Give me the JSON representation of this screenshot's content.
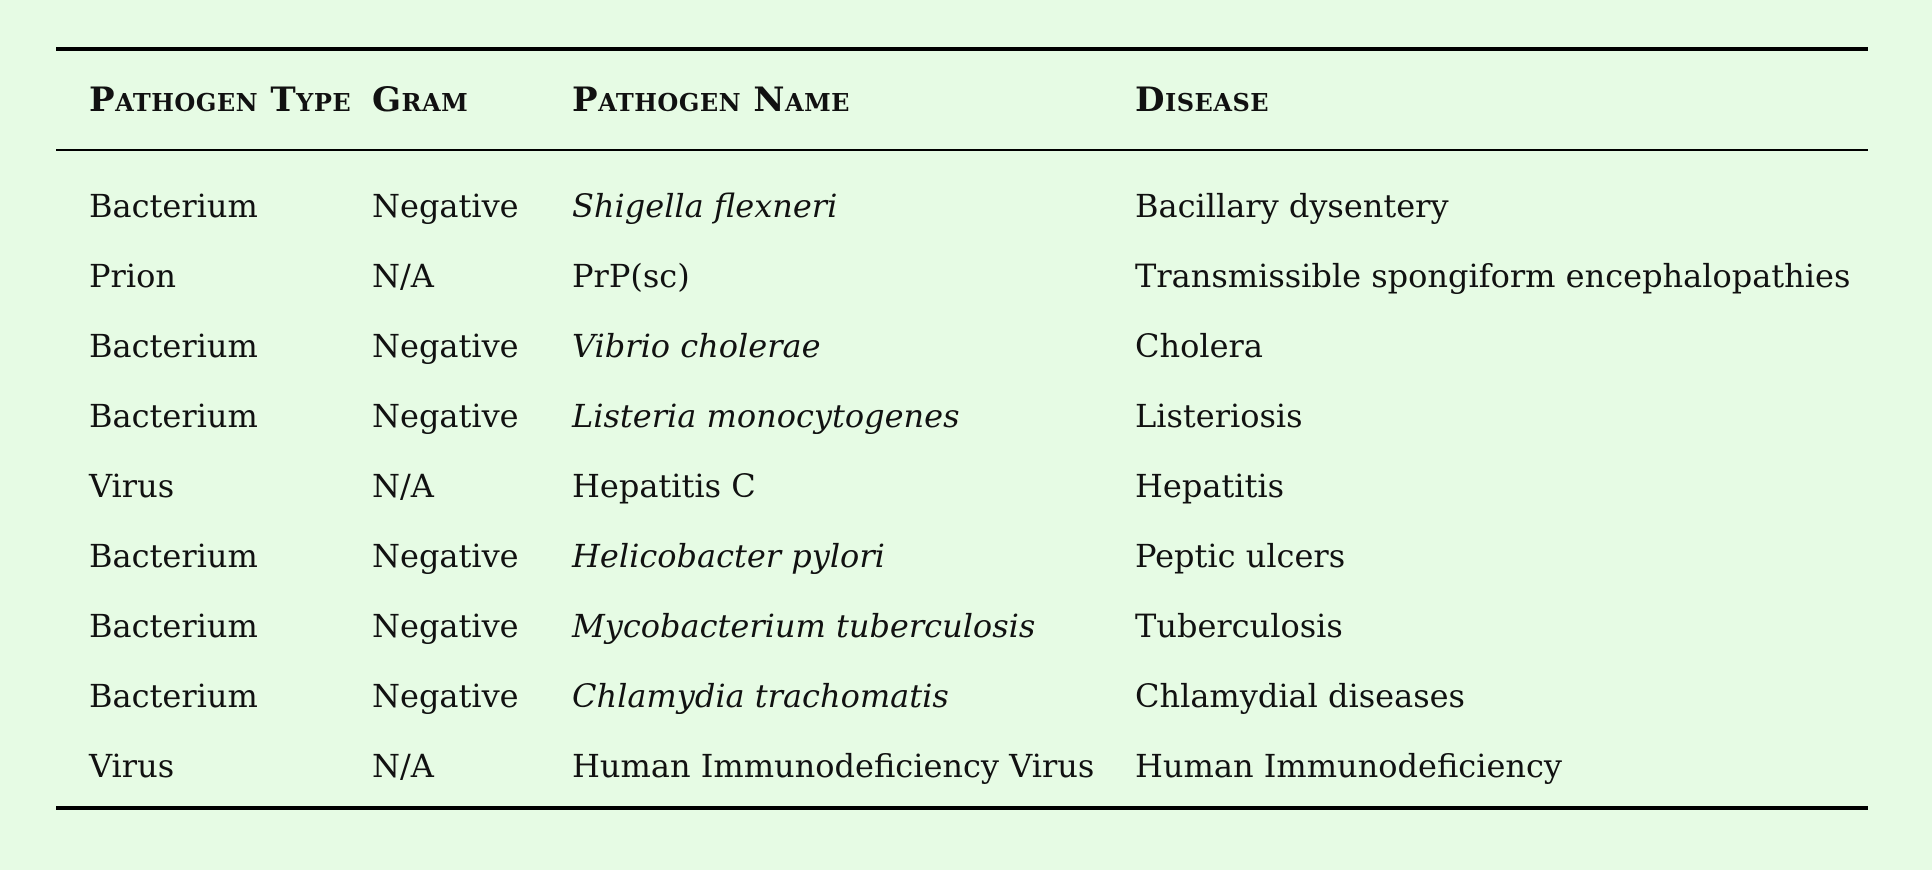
{
  "table": {
    "headers": [
      "Pathogen Type",
      "Gram",
      "Pathogen Name",
      "Disease"
    ],
    "rows": [
      {
        "type": "Bacterium",
        "gram": "Negative",
        "name": "Shigella flexneri",
        "name_italic": true,
        "disease": "Bacillary dysentery"
      },
      {
        "type": "Prion",
        "gram": "N/A",
        "name": "PrP(sc)",
        "name_italic": false,
        "disease": "Transmissible spongiform encephalopathies"
      },
      {
        "type": "Bacterium",
        "gram": "Negative",
        "name": "Vibrio cholerae",
        "name_italic": true,
        "disease": "Cholera"
      },
      {
        "type": "Bacterium",
        "gram": "Negative",
        "name": "Listeria monocytogenes",
        "name_italic": true,
        "disease": "Listeriosis"
      },
      {
        "type": "Virus",
        "gram": "N/A",
        "name": "Hepatitis C",
        "name_italic": false,
        "disease": "Hepatitis"
      },
      {
        "type": "Bacterium",
        "gram": "Negative",
        "name": "Helicobacter pylori",
        "name_italic": true,
        "disease": "Peptic ulcers"
      },
      {
        "type": "Bacterium",
        "gram": "Negative",
        "name": "Mycobacterium tuberculosis",
        "name_italic": true,
        "disease": "Tuberculosis"
      },
      {
        "type": "Bacterium",
        "gram": "Negative",
        "name": "Chlamydia trachomatis",
        "name_italic": true,
        "disease": "Chlamydial diseases"
      },
      {
        "type": "Virus",
        "gram": "N/A",
        "name": "Human Immunodeficiency Virus",
        "name_italic": false,
        "disease": "Human Immunodeficiency"
      }
    ]
  },
  "colors": {
    "background": "#e6fbe4",
    "rule": "#000000",
    "text": "#111111"
  }
}
